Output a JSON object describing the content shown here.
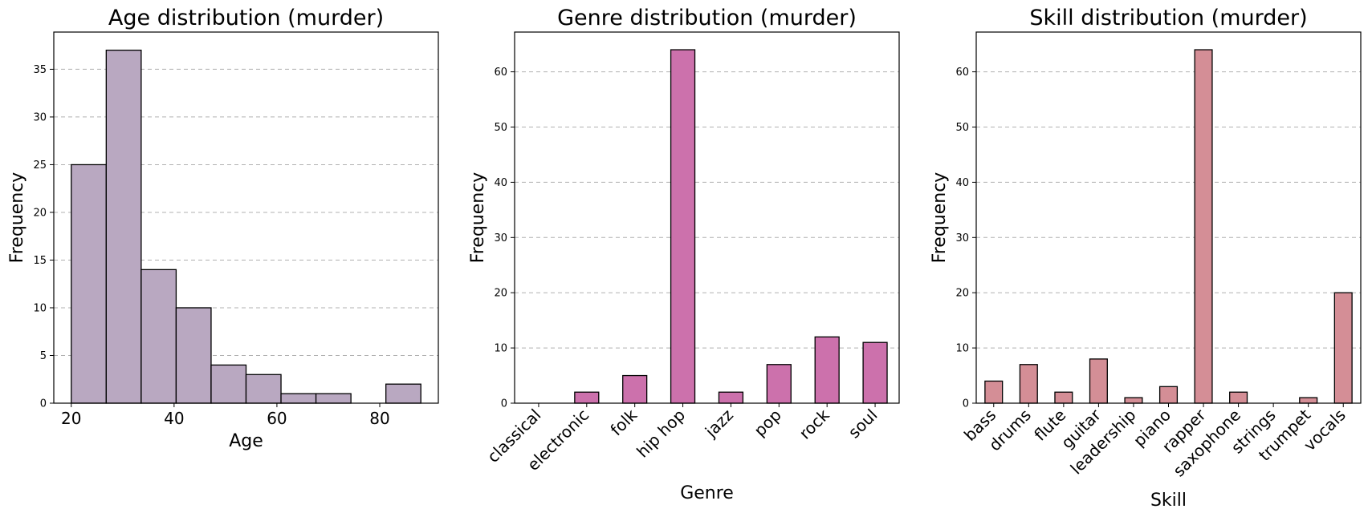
{
  "chart_data": [
    {
      "type": "bar",
      "subtype": "histogram",
      "title": "Age distribution (murder)",
      "xlabel": "Age",
      "ylabel": "Frequency",
      "bin_edges": [
        20.0,
        26.8,
        33.6,
        40.4,
        47.2,
        54.0,
        60.8,
        67.6,
        74.4,
        81.2,
        88.0
      ],
      "values": [
        25,
        37,
        14,
        10,
        4,
        3,
        1,
        1,
        0,
        2
      ],
      "xlim": [
        16.6,
        91.4
      ],
      "ylim": [
        0,
        38.9
      ],
      "xticks": [
        20,
        40,
        60,
        80
      ],
      "yticks": [
        0,
        5,
        10,
        15,
        20,
        25,
        30,
        35
      ],
      "color": "#b9a8c1",
      "grid": "y-dashed",
      "legend": "none"
    },
    {
      "type": "bar",
      "title": "Genre distribution (murder)",
      "xlabel": "Genre",
      "ylabel": "Frequency",
      "categories": [
        "classical",
        "electronic",
        "folk",
        "hip hop",
        "jazz",
        "pop",
        "rock",
        "soul"
      ],
      "values": [
        0,
        2,
        5,
        64,
        2,
        7,
        12,
        11
      ],
      "ylim": [
        0,
        67.2
      ],
      "yticks": [
        0,
        10,
        20,
        30,
        40,
        50,
        60
      ],
      "color": "#cc71ac",
      "grid": "y-dashed",
      "legend": "none"
    },
    {
      "type": "bar",
      "title": "Skill distribution (murder)",
      "xlabel": "Skill",
      "ylabel": "Frequency",
      "categories": [
        "bass",
        "drums",
        "flute",
        "guitar",
        "leadership",
        "piano",
        "rapper",
        "saxophone",
        "strings",
        "trumpet",
        "vocals"
      ],
      "values": [
        4,
        7,
        2,
        8,
        1,
        3,
        64,
        2,
        0,
        1,
        20
      ],
      "ylim": [
        0,
        67.2
      ],
      "yticks": [
        0,
        10,
        20,
        30,
        40,
        50,
        60
      ],
      "color": "#d48e96",
      "grid": "y-dashed",
      "legend": "none"
    }
  ]
}
